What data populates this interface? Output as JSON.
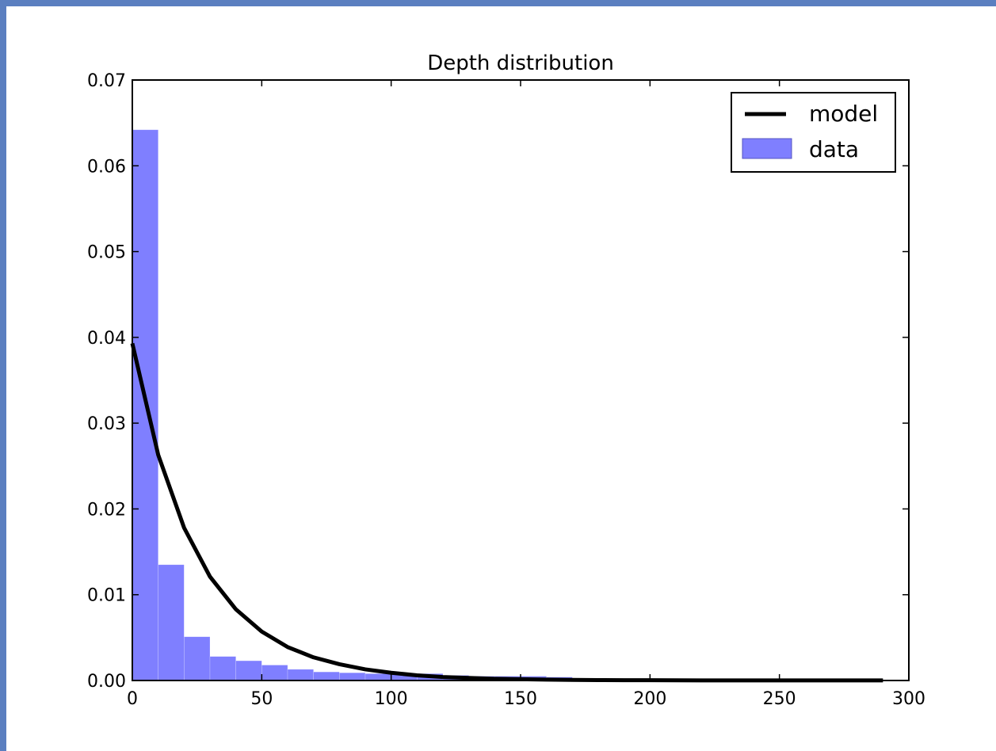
{
  "chart_data": {
    "type": "bar",
    "title": "Depth distribution",
    "xlabel": "",
    "ylabel": "",
    "xlim": [
      0,
      300
    ],
    "ylim": [
      0,
      0.07
    ],
    "grid": false,
    "legend_placement": "top-right",
    "x_ticks": [
      "0",
      "50",
      "100",
      "150",
      "200",
      "250",
      "300"
    ],
    "y_ticks": [
      "0.00",
      "0.01",
      "0.02",
      "0.03",
      "0.04",
      "0.05",
      "0.06",
      "0.07"
    ],
    "series": [
      {
        "name": "data",
        "kind": "histogram",
        "color": "#7f7fff",
        "bin_width": 10,
        "bin_starts": [
          0,
          10,
          20,
          30,
          40,
          50,
          60,
          70,
          80,
          90,
          100,
          110,
          120,
          130,
          140,
          150,
          160,
          170,
          180,
          190,
          200,
          210,
          220,
          230,
          240,
          250,
          260,
          270,
          280
        ],
        "values": [
          0.0642,
          0.0135,
          0.0051,
          0.0028,
          0.0023,
          0.0018,
          0.0013,
          0.001,
          0.0009,
          0.0008,
          0.0007,
          0.0008,
          0.0006,
          0.0005,
          0.0005,
          0.0005,
          0.0004,
          0.0002,
          0.0001,
          0.0001,
          0.0001,
          0.0001,
          0.0001,
          0.0001,
          0.0001,
          0.0001,
          0.0001,
          0.0001,
          0.0001
        ]
      },
      {
        "name": "model",
        "kind": "line",
        "color": "#000000",
        "x": [
          0,
          10,
          20,
          30,
          40,
          50,
          60,
          70,
          80,
          90,
          100,
          110,
          120,
          130,
          140,
          150,
          160,
          170,
          180,
          190,
          200,
          210,
          220,
          230,
          240,
          250,
          260,
          270,
          280,
          290
        ],
        "values": [
          0.0393,
          0.0263,
          0.0178,
          0.0121,
          0.0083,
          0.0057,
          0.0039,
          0.0027,
          0.0019,
          0.0013,
          0.0009,
          0.0006,
          0.0004,
          0.0003,
          0.0002,
          0.00015,
          0.0001,
          7e-05,
          5e-05,
          4e-05,
          3e-05,
          2e-05,
          1e-05,
          1e-05,
          1e-05,
          1e-05,
          1e-05,
          1e-05,
          1e-05,
          1e-05
        ]
      }
    ]
  }
}
